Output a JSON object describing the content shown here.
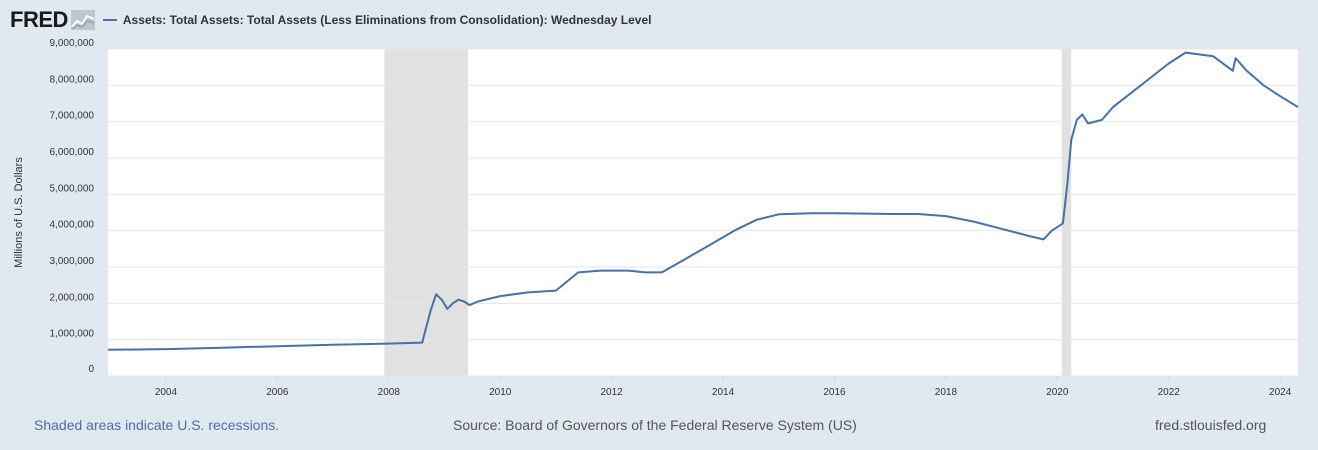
{
  "brand": {
    "logo_text": "FRED"
  },
  "series_title": "Assets: Total Assets: Total Assets (Less Eliminations from Consolidation): Wednesday Level",
  "footer": {
    "recession_note": "Shaded areas indicate U.S. recessions.",
    "source": "Source: Board of Governors of the Federal Reserve System (US)",
    "site": "fred.stlouisfed.org"
  },
  "colors": {
    "line": "#4572a7",
    "recession": "#e1e1e1",
    "background": "#e1e9f0",
    "plot_bg": "#ffffff",
    "grid": "#e6e6e6"
  },
  "chart_data": {
    "type": "line",
    "title": "",
    "xlabel": "",
    "ylabel": "Millions of U.S. Dollars",
    "xlim": [
      2002.96,
      2024.32
    ],
    "ylim": [
      0,
      9000000
    ],
    "grid": "horizontal",
    "x_ticks": [
      2004,
      2006,
      2008,
      2010,
      2012,
      2014,
      2016,
      2018,
      2020,
      2022,
      2024
    ],
    "x_tick_labels": [
      "2004",
      "2006",
      "2008",
      "2010",
      "2012",
      "2014",
      "2016",
      "2018",
      "2020",
      "2022",
      "2024"
    ],
    "y_ticks": [
      0,
      1000000,
      2000000,
      3000000,
      4000000,
      5000000,
      6000000,
      7000000,
      8000000,
      9000000
    ],
    "y_tick_labels": [
      "0",
      "1,000,000",
      "2,000,000",
      "3,000,000",
      "4,000,000",
      "5,000,000",
      "6,000,000",
      "7,000,000",
      "8,000,000",
      "9,000,000"
    ],
    "recessions": [
      [
        2007.92,
        2009.42
      ],
      [
        2020.08,
        2020.25
      ]
    ],
    "series": [
      {
        "name": "Assets: Total Assets: Total Assets (Less Eliminations from Consolidation): Wednesday Level",
        "x": [
          2002.96,
          2004,
          2005,
          2006,
          2007,
          2007.9,
          2008.6,
          2008.75,
          2008.85,
          2008.95,
          2009.05,
          2009.15,
          2009.25,
          2009.35,
          2009.45,
          2009.6,
          2010,
          2010.5,
          2011,
          2011.4,
          2011.8,
          2012.3,
          2012.6,
          2012.9,
          2013.3,
          2013.7,
          2014.2,
          2014.6,
          2015,
          2015.6,
          2016,
          2016.6,
          2017,
          2017.5,
          2018,
          2018.5,
          2019,
          2019.5,
          2019.75,
          2019.9,
          2020.1,
          2020.18,
          2020.25,
          2020.35,
          2020.45,
          2020.55,
          2020.8,
          2021,
          2021.5,
          2022,
          2022.3,
          2022.8,
          2023.15,
          2023.2,
          2023.4,
          2023.7,
          2024,
          2024.32
        ],
        "y": [
          720000,
          740000,
          780000,
          820000,
          860000,
          890000,
          920000,
          1800000,
          2250000,
          2100000,
          1850000,
          2000000,
          2100000,
          2050000,
          1950000,
          2050000,
          2200000,
          2300000,
          2350000,
          2850000,
          2900000,
          2900000,
          2850000,
          2850000,
          3200000,
          3550000,
          4000000,
          4300000,
          4450000,
          4480000,
          4480000,
          4470000,
          4460000,
          4460000,
          4400000,
          4250000,
          4050000,
          3850000,
          3760000,
          4000000,
          4200000,
          5300000,
          6500000,
          7050000,
          7200000,
          6950000,
          7050000,
          7400000,
          8000000,
          8600000,
          8900000,
          8800000,
          8400000,
          8750000,
          8400000,
          8000000,
          7700000,
          7400000
        ]
      }
    ]
  }
}
